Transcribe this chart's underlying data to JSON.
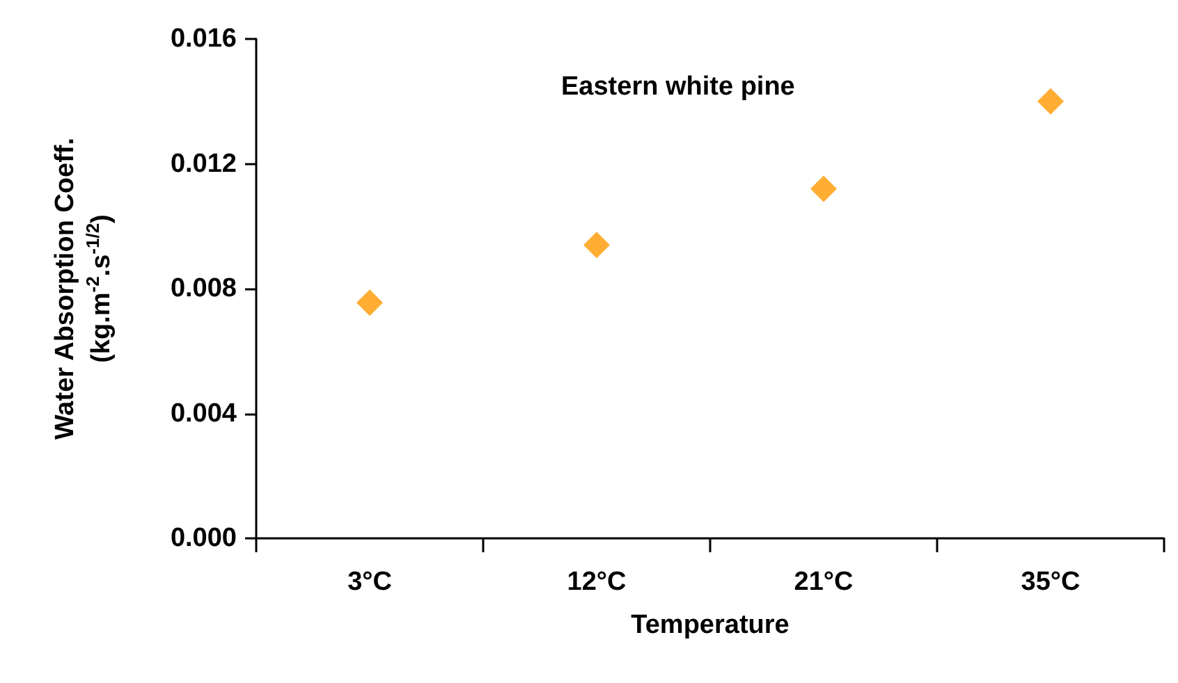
{
  "chart_data": {
    "type": "scatter",
    "title": "Eastern white pine",
    "xlabel": "Temperature",
    "ylabel": "Water Absorption Coeff.\n(kg.m$^{-2}$.s$^{-1/2}$)",
    "categories": [
      "3°C",
      "12°C",
      "21°C",
      "35°C"
    ],
    "series": [
      {
        "color": "#ff9900",
        "values": [
          0.00755,
          0.0094,
          0.0112,
          0.014
        ]
      }
    ],
    "ylim": [
      0,
      0.016
    ],
    "yticks": [
      {
        "value": 0,
        "label": "0.000"
      },
      {
        "value": 0.004,
        "label": "0.004"
      },
      {
        "value": 0.008,
        "label": "0.008"
      },
      {
        "value": 0.012,
        "label": "0.012"
      },
      {
        "value": 0.016,
        "label": "0.016"
      }
    ],
    "marker": "diamond",
    "grid": false
  }
}
